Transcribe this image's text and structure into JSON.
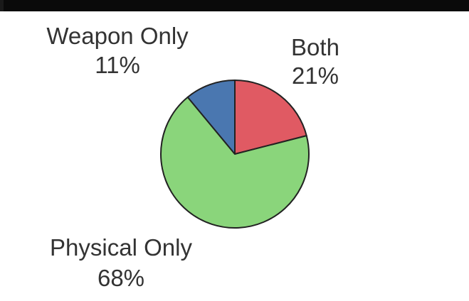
{
  "chart_data": {
    "type": "pie",
    "title": "",
    "slices": [
      {
        "name": "Both",
        "percent_label": "21%",
        "value": 21,
        "color": "#e05a63"
      },
      {
        "name": "Physical Only",
        "percent_label": "68%",
        "value": 68,
        "color": "#8ad57b"
      },
      {
        "name": "Weapon Only",
        "percent_label": "11%",
        "value": 11,
        "color": "#4a77b0"
      }
    ]
  }
}
